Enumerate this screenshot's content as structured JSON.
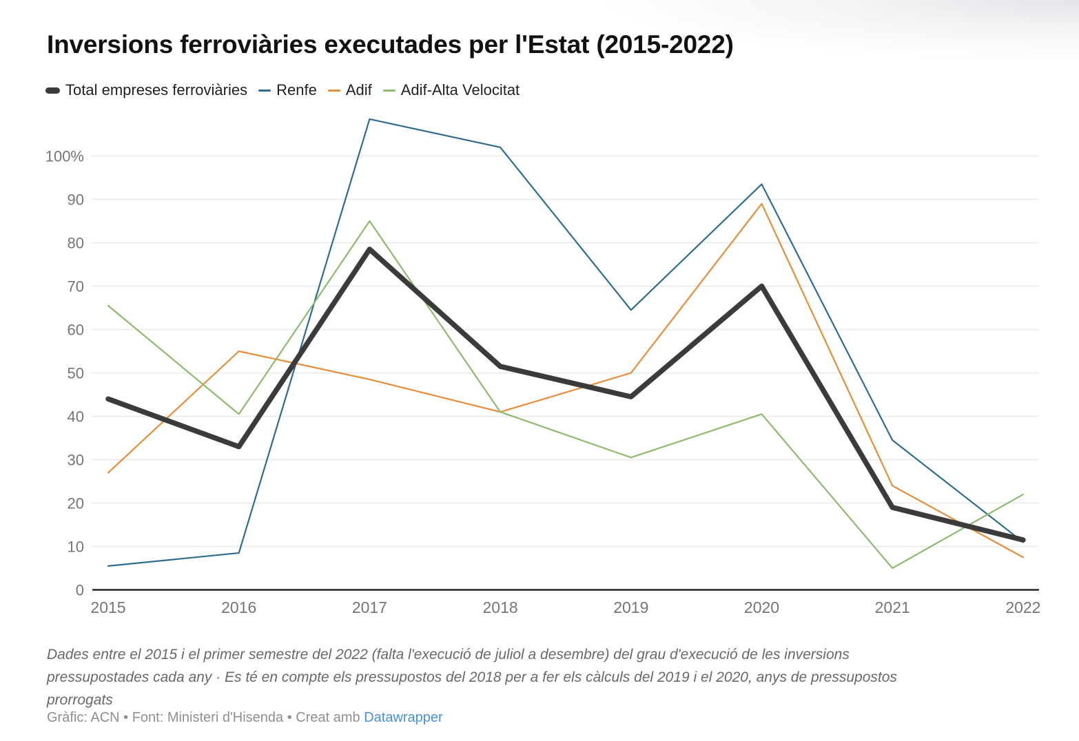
{
  "header": {
    "title": "Inversions ferroviàries executades per l'Estat (2015-2022)"
  },
  "legend": {
    "items": [
      {
        "label": "Total empreses ferroviàries",
        "color": "#3b3b3b",
        "thick": true
      },
      {
        "label": "Renfe",
        "color": "#2d6c8d",
        "thick": false
      },
      {
        "label": "Adif",
        "color": "#e78c3a",
        "thick": false
      },
      {
        "label": "Adif-Alta Velocitat",
        "color": "#8dba6e",
        "thick": false
      }
    ]
  },
  "chart_data": {
    "type": "line",
    "title": "Inversions ferroviàries executades per l'Estat (2015-2022)",
    "x": [
      "2015",
      "2016",
      "2017",
      "2018",
      "2019",
      "2020",
      "2021",
      "2022"
    ],
    "unit": "%",
    "ylim": [
      0,
      110
    ],
    "yticks": [
      0,
      10,
      20,
      30,
      40,
      50,
      60,
      70,
      80,
      90,
      100
    ],
    "ytick_labels": [
      "0",
      "10",
      "20",
      "30",
      "40",
      "50",
      "60",
      "70",
      "80",
      "90",
      "100%"
    ],
    "grid": "horizontal",
    "legend_position": "top",
    "series": [
      {
        "name": "Total empreses ferroviàries",
        "color": "#3b3b3b",
        "stroke_width": 7.5,
        "values": [
          44,
          33,
          78.5,
          51.5,
          44.5,
          70,
          19,
          11.5
        ]
      },
      {
        "name": "Renfe",
        "color": "#2d6c8d",
        "stroke_width": 2.2,
        "values": [
          5.5,
          8.5,
          108.5,
          102,
          64.5,
          93.5,
          34.5,
          11
        ]
      },
      {
        "name": "Adif",
        "color": "#e78c3a",
        "stroke_width": 2.2,
        "values": [
          27,
          55,
          48.5,
          41,
          50,
          89,
          24,
          7.5
        ]
      },
      {
        "name": "Adif-Alta Velocitat",
        "color": "#8dba6e",
        "stroke_width": 2.2,
        "values": [
          65.5,
          40.5,
          85,
          41,
          30.5,
          40.5,
          5,
          22
        ]
      }
    ]
  },
  "notes": {
    "line1": "Dades entre el 2015 i el primer semestre del 2022 (falta l'execució de juliol a desembre) del grau d'execució de les inversions",
    "line2": "pressupostades cada any · Es té en compte els pressupostos del 2018 per a fer els càlculs del 2019 i el 2020, anys de pressupostos",
    "line3": "prorrogats"
  },
  "byline": {
    "text": "Gràfic: ACN • Font: Ministeri d'Hisenda • Creat amb",
    "link_label": "Datawrapper",
    "link_color": "#4a90d9"
  },
  "colors": {
    "axis": "#242424",
    "grid": "#e8e8e8",
    "tick_text": "#757575"
  }
}
